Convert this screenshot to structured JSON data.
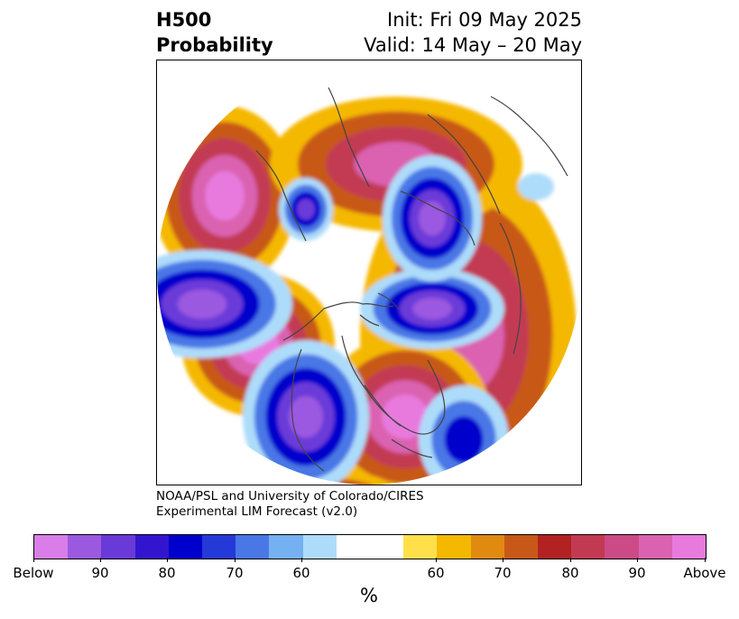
{
  "title": {
    "left_line1": "H500",
    "left_line2": "Probability",
    "right_line1": "Init: Fri 09 May 2025",
    "right_line2": "Valid: 14 May – 20 May"
  },
  "credit": {
    "line1": "NOAA/PSL and University of Colorado/CIRES",
    "line2": "Experimental LIM Forecast (v2.0)"
  },
  "colorbar": {
    "colors": [
      "#d97ee8",
      "#9b59e0",
      "#6a3ad8",
      "#3415cf",
      "#0000cc",
      "#2439d8",
      "#4a77e6",
      "#74b0f2",
      "#addcfa",
      "#ffffff",
      "#ffffff",
      "#ffe04a",
      "#f5b800",
      "#e08a10",
      "#c85818",
      "#b22222",
      "#c23a52",
      "#cc4a86",
      "#da62b0",
      "#e87ade"
    ],
    "tick_labels": [
      "Below",
      "90",
      "80",
      "70",
      "60",
      "60",
      "70",
      "80",
      "90",
      "Above"
    ],
    "unit": "%"
  },
  "map": {
    "projection": "north-polar-stereographic",
    "field": "500 hPa height anomaly probability",
    "colors": {
      "above_max": "#e87ade",
      "above_90": "#da62b0",
      "above_80": "#c23a52",
      "above_70": "#c85818",
      "above_60": "#f5b800",
      "below_60": "#addcfa",
      "below_70": "#4a77e6",
      "below_80": "#0000cc",
      "below_90": "#6a3ad8",
      "below_max": "#9b59e0",
      "coast": "#444444"
    }
  }
}
